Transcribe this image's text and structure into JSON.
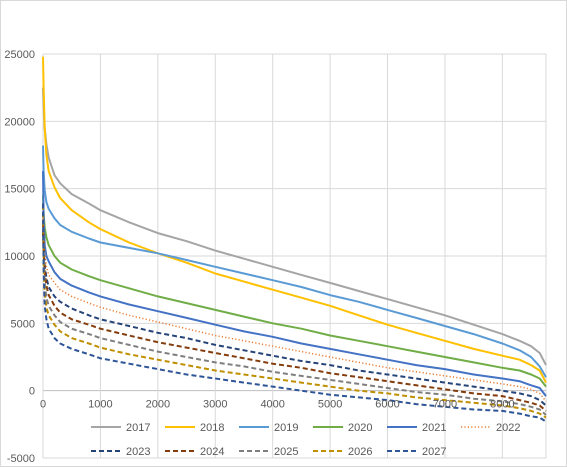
{
  "chart_data": {
    "type": "line",
    "title": "",
    "xlabel": "",
    "ylabel": "",
    "xlim": [
      0,
      8760
    ],
    "ylim": [
      -5000,
      25000
    ],
    "x_ticks": [
      0,
      1000,
      2000,
      3000,
      4000,
      5000,
      6000,
      7000,
      8000
    ],
    "x_tick_labels": [
      "0",
      "1000",
      "2000",
      "3000",
      "4000",
      "5000",
      "6000",
      "7000",
      "8000"
    ],
    "y_ticks": [
      -5000,
      0,
      5000,
      10000,
      15000,
      20000,
      25000
    ],
    "y_tick_labels": [
      "-5000",
      "0",
      "5000",
      "10000",
      "15000",
      "20000",
      "25000"
    ],
    "grid": "horizontal and vertical major gridlines",
    "legend_position": "bottom",
    "x_sample": [
      0,
      10,
      30,
      60,
      100,
      200,
      300,
      500,
      800,
      1000,
      1500,
      2000,
      2500,
      3000,
      3500,
      4000,
      4500,
      5000,
      5500,
      6000,
      6500,
      7000,
      7500,
      8000,
      8300,
      8500,
      8650,
      8760
    ],
    "series": [
      {
        "name": "2017",
        "color": "#a5a5a5",
        "dash": "solid",
        "values": [
          22500,
          21000,
          19500,
          18300,
          17300,
          16000,
          15400,
          14600,
          13900,
          13400,
          12500,
          11700,
          11100,
          10400,
          9800,
          9200,
          8600,
          8000,
          7400,
          6800,
          6200,
          5600,
          4900,
          4200,
          3700,
          3300,
          2800,
          1900
        ]
      },
      {
        "name": "2018",
        "color": "#ffc000",
        "dash": "solid",
        "values": [
          24800,
          22500,
          19500,
          17500,
          16300,
          15100,
          14300,
          13400,
          12500,
          12000,
          11000,
          10200,
          9500,
          8700,
          8100,
          7500,
          6900,
          6300,
          5600,
          4900,
          4300,
          3700,
          3100,
          2600,
          2300,
          1900,
          1500,
          600
        ]
      },
      {
        "name": "2019",
        "color": "#5b9bd5",
        "dash": "solid",
        "values": [
          18200,
          16300,
          14900,
          14000,
          13500,
          12800,
          12300,
          11800,
          11300,
          11000,
          10600,
          10200,
          9700,
          9200,
          8700,
          8200,
          7700,
          7100,
          6600,
          6000,
          5400,
          4800,
          4200,
          3500,
          3000,
          2500,
          1800,
          1000
        ]
      },
      {
        "name": "2020",
        "color": "#70ad47",
        "dash": "solid",
        "values": [
          14500,
          13200,
          12100,
          11400,
          10800,
          10000,
          9500,
          9000,
          8500,
          8200,
          7600,
          7000,
          6500,
          6000,
          5500,
          5000,
          4600,
          4100,
          3700,
          3300,
          2900,
          2500,
          2100,
          1700,
          1500,
          1200,
          900,
          300
        ]
      },
      {
        "name": "2021",
        "color": "#4472c4",
        "dash": "solid",
        "values": [
          16300,
          13000,
          10800,
          10000,
          9600,
          8800,
          8300,
          7800,
          7300,
          7000,
          6400,
          5900,
          5400,
          4900,
          4400,
          4000,
          3500,
          3100,
          2700,
          2300,
          1900,
          1600,
          1200,
          900,
          700,
          400,
          200,
          -400
        ]
      },
      {
        "name": "2022",
        "color": "#ed7d31",
        "dash": "dot",
        "values": [
          12800,
          11500,
          10200,
          9200,
          8600,
          8000,
          7500,
          7000,
          6500,
          6200,
          5600,
          5100,
          4600,
          4100,
          3700,
          3300,
          2900,
          2500,
          2100,
          1700,
          1400,
          1100,
          800,
          500,
          300,
          100,
          -200,
          -800
        ]
      },
      {
        "name": "2023",
        "color": "#264478",
        "dash": "dash",
        "values": [
          11800,
          10500,
          9300,
          8400,
          7700,
          7000,
          6600,
          6100,
          5600,
          5300,
          4800,
          4300,
          3900,
          3400,
          3000,
          2600,
          2200,
          1900,
          1500,
          1200,
          900,
          600,
          300,
          0,
          -200,
          -400,
          -700,
          -1100
        ]
      },
      {
        "name": "2024",
        "color": "#843c0c",
        "dash": "dash",
        "values": [
          12500,
          10600,
          8900,
          7800,
          7100,
          6300,
          5800,
          5300,
          4900,
          4600,
          4100,
          3600,
          3200,
          2800,
          2400,
          2000,
          1700,
          1300,
          1000,
          700,
          400,
          100,
          -200,
          -400,
          -700,
          -900,
          -1100,
          -1500
        ]
      },
      {
        "name": "2025",
        "color": "#7f7f7f",
        "dash": "dash",
        "values": [
          13300,
          10200,
          8000,
          6900,
          6300,
          5600,
          5100,
          4600,
          4200,
          3900,
          3400,
          2900,
          2500,
          2100,
          1800,
          1400,
          1100,
          800,
          500,
          200,
          -100,
          -300,
          -600,
          -800,
          -1000,
          -1200,
          -1400,
          -1800
        ]
      },
      {
        "name": "2026",
        "color": "#bf8f00",
        "dash": "dash",
        "values": [
          13800,
          9500,
          7200,
          6200,
          5600,
          4900,
          4400,
          3900,
          3500,
          3200,
          2700,
          2300,
          1900,
          1500,
          1200,
          900,
          600,
          300,
          0,
          -200,
          -500,
          -700,
          -900,
          -1100,
          -1300,
          -1500,
          -1700,
          -2000
        ]
      },
      {
        "name": "2027",
        "color": "#2e5597",
        "dash": "dash",
        "values": [
          13900,
          9000,
          6300,
          5300,
          4600,
          3900,
          3500,
          3100,
          2700,
          2400,
          2000,
          1600,
          1200,
          900,
          600,
          300,
          0,
          -300,
          -500,
          -700,
          -1000,
          -1200,
          -1400,
          -1500,
          -1700,
          -1900,
          -2000,
          -2300
        ]
      }
    ]
  }
}
